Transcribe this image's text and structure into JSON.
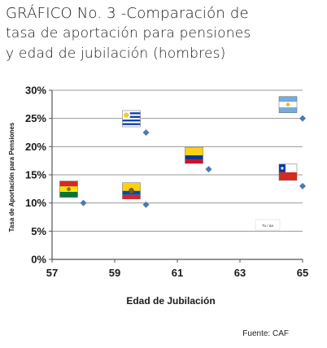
{
  "title": {
    "line1": "GRÁFICO No. 3 -Comparación de",
    "line2": "tasa de aportación para pensiones",
    "line3": "y edad de jubilación (hombres)"
  },
  "source": "Fuente: CAF",
  "tiny_label": "Tu / aa",
  "chart_data": {
    "type": "scatter",
    "xlabel": "Edad de Jubilación",
    "ylabel": "Tasa de Aportación para Pensiones",
    "xlim": [
      57,
      65
    ],
    "ylim": [
      0,
      30
    ],
    "x_ticks": [
      57,
      59,
      61,
      63,
      65
    ],
    "y_ticks": [
      0,
      5,
      10,
      15,
      20,
      25,
      30
    ],
    "y_tick_labels": [
      "0%",
      "5%",
      "10%",
      "15%",
      "20%",
      "25%",
      "30%"
    ],
    "grid": true,
    "points": [
      {
        "country": "bolivia-flag",
        "x": 58,
        "y": 10.0
      },
      {
        "country": "ecuador-flag",
        "x": 60,
        "y": 9.7
      },
      {
        "country": "uruguay-flag",
        "x": 60,
        "y": 22.5
      },
      {
        "country": "colombia-flag",
        "x": 62,
        "y": 16.0
      },
      {
        "country": "chile-flag",
        "x": 65,
        "y": 13.0
      },
      {
        "country": "argentina-flag",
        "x": 65,
        "y": 25.0
      }
    ],
    "colors": {
      "marker": "#4a78b8",
      "grid": "#9a9a9a",
      "axis": "#555555"
    }
  }
}
